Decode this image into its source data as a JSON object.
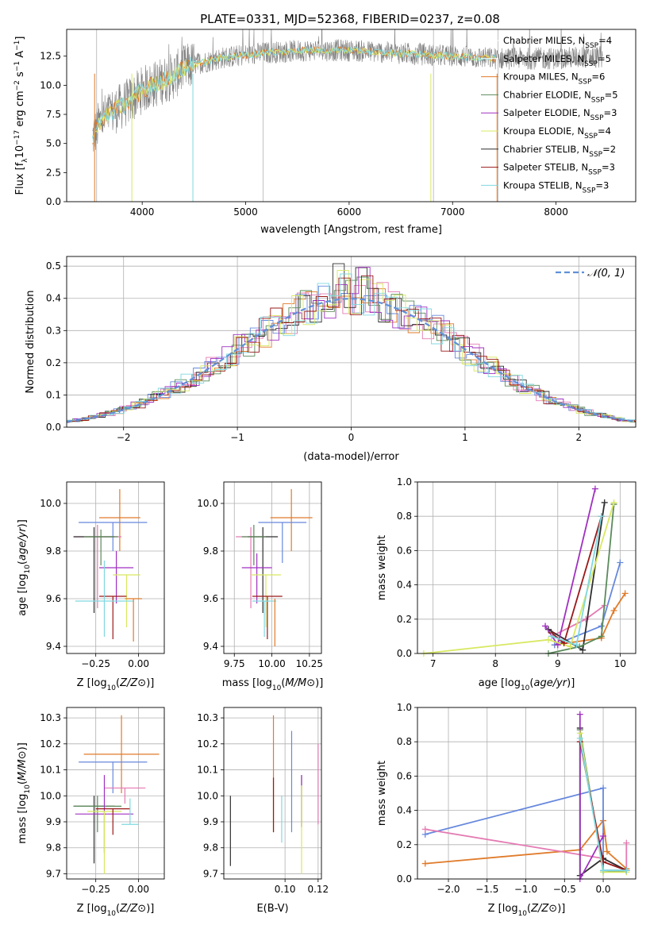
{
  "figure_title": "PLATE=0331, MJD=52368, FIBERID=0237, z=0.08",
  "colors": {
    "data": "#808080",
    "models": [
      "#e07b2a",
      "#6688dd",
      "#e47ab2",
      "#2f2f2f",
      "#5a8a5a",
      "#a030c0",
      "#d8e860",
      "#9a1818",
      "#80d8e0"
    ],
    "normal": "#6090d8"
  },
  "chart_data": [
    {
      "id": "spectrum",
      "type": "line",
      "title": "PLATE=0331, MJD=52368, FIBERID=0237, z=0.08",
      "xlabel": "wavelength [Angstrom, rest frame]",
      "ylabel": "Flux [f_λ 10^-17 erg cm^-2 s^-1 A^-1]",
      "xlim": [
        3270,
        8770
      ],
      "ylim": [
        0,
        14.8
      ],
      "xticks": [
        "4000",
        "5000",
        "6000",
        "7000",
        "8000"
      ],
      "xtick_values": [
        4000,
        5000,
        6000,
        7000,
        8000
      ],
      "yticks": [
        "0.0",
        "2.5",
        "5.0",
        "7.5",
        "10.0",
        "12.5"
      ],
      "ytick_values": [
        0,
        2.5,
        5,
        7.5,
        10,
        12.5
      ],
      "grid": false,
      "legend_position": "right",
      "spectrum_range": [
        3520,
        8450
      ],
      "data_envelope": {
        "x": [
          3520,
          3600,
          3700,
          3800,
          3900,
          4000,
          4100,
          4200,
          4300,
          4400,
          4500,
          4600,
          4700,
          4800,
          4900,
          5000,
          5200,
          5400,
          5600,
          5800,
          6000,
          6200,
          6400,
          6600,
          6800,
          7000,
          7200,
          7400,
          7600,
          7800,
          8000,
          8200,
          8450
        ],
        "y": [
          5.5,
          7.0,
          7.6,
          8.2,
          8.8,
          9.6,
          10.0,
          10.4,
          10.8,
          11.4,
          11.8,
          12.0,
          12.2,
          12.4,
          12.5,
          12.6,
          12.8,
          12.9,
          13.0,
          13.0,
          13.0,
          12.9,
          12.8,
          12.7,
          12.6,
          12.5,
          12.4,
          12.3,
          12.3,
          12.3,
          12.3,
          12.4,
          12.4
        ]
      },
      "legend": [
        {
          "label": "Chabrier MILES, N",
          "sub": "SSP",
          "suffix": "=4"
        },
        {
          "label": "Salpeter MILES, N",
          "sub": "SSP",
          "suffix": "=5"
        },
        {
          "label": "Kroupa MILES, N",
          "sub": "SSP",
          "suffix": "=6"
        },
        {
          "label": "Chabrier ELODIE, N",
          "sub": "SSP",
          "suffix": "=5"
        },
        {
          "label": "Salpeter ELODIE, N",
          "sub": "SSP",
          "suffix": "=3"
        },
        {
          "label": "Kroupa ELODIE, N",
          "sub": "SSP",
          "suffix": "=4"
        },
        {
          "label": "Chabrier STELIB, N",
          "sub": "SSP",
          "suffix": "=2"
        },
        {
          "label": "Salpeter STELIB, N",
          "sub": "SSP",
          "suffix": "=3"
        },
        {
          "label": "Kroupa STELIB, N",
          "sub": "SSP",
          "suffix": "=3"
        }
      ],
      "legend_colors": [
        "#ffffff",
        "#ffffff",
        "#e07b2a",
        "#5a8a5a",
        "#a030c0",
        "#d8e860",
        "#2f2f2f",
        "#9a1818",
        "#80d8e0"
      ]
    },
    {
      "id": "residuals",
      "type": "histogram",
      "xlabel": "(data-model)/error",
      "ylabel": "Normed distribution",
      "xlim": [
        -2.5,
        2.5
      ],
      "ylim": [
        0,
        0.53
      ],
      "xticks": [
        "−2",
        "−1",
        "0",
        "1",
        "2"
      ],
      "xtick_values": [
        -2,
        -1,
        0,
        1,
        2
      ],
      "yticks": [
        "0.0",
        "0.1",
        "0.2",
        "0.3",
        "0.4",
        "0.5"
      ],
      "ytick_values": [
        0,
        0.1,
        0.2,
        0.3,
        0.4,
        0.5
      ],
      "grid": true,
      "legend_position": "top-right",
      "legend": "𝒩(0, 1)",
      "bin_width": 0.1
    },
    {
      "id": "age-vs-Z",
      "type": "errorbar",
      "xlabel": "Z [log10(Z/Z⊙)]",
      "ylabel": "age  [log10(age/yr)]",
      "xlim": [
        -0.42,
        0.15
      ],
      "ylim": [
        9.37,
        10.09
      ],
      "xticks": [
        "−0.25",
        "0.00"
      ],
      "xtick_values": [
        -0.25,
        0
      ],
      "yticks": [
        "9.4",
        "9.6",
        "9.8",
        "10.0"
      ],
      "ytick_values": [
        9.4,
        9.6,
        9.8,
        10.0
      ],
      "grid": true,
      "points": [
        {
          "x": -0.11,
          "y": 9.94,
          "xerr": 0.12,
          "yerr": [
            0.14,
            0.12
          ]
        },
        {
          "x": -0.15,
          "y": 9.92,
          "xerr": 0.2,
          "yerr": [
            0.12,
            0.0
          ]
        },
        {
          "x": -0.24,
          "y": 9.86,
          "xerr": 0.14,
          "yerr": [
            0.3,
            0.05
          ]
        },
        {
          "x": -0.26,
          "y": 9.86,
          "xerr": 0.12,
          "yerr": [
            0.32,
            0.04
          ]
        },
        {
          "x": -0.22,
          "y": 9.86,
          "xerr": 0.1,
          "yerr": [
            0.12,
            0.03
          ]
        },
        {
          "x": -0.13,
          "y": 9.73,
          "xerr": 0.1,
          "yerr": [
            0.15,
            0.07
          ]
        },
        {
          "x": -0.07,
          "y": 9.7,
          "xerr": 0.08,
          "yerr": [
            0.22,
            0.0
          ]
        },
        {
          "x": -0.15,
          "y": 9.61,
          "xerr": 0.08,
          "yerr": [
            0.18,
            0.0
          ]
        },
        {
          "x": -0.2,
          "y": 9.59,
          "xerr": 0.17,
          "yerr": [
            0.15,
            0.17
          ]
        },
        {
          "x": -0.03,
          "y": 9.6,
          "xerr": 0.05,
          "yerr": [
            0.18,
            0.0
          ]
        }
      ]
    },
    {
      "id": "age-vs-mass",
      "type": "errorbar",
      "xlabel": "mass [log10(M/M⊙)]",
      "ylabel": "",
      "xlim": [
        9.68,
        10.33
      ],
      "ylim": [
        9.37,
        10.09
      ],
      "xticks": [
        "9.75",
        "10.00",
        "10.25"
      ],
      "xtick_values": [
        9.75,
        10.0,
        10.25
      ],
      "yticks": [
        "9.4",
        "9.6",
        "9.8",
        "10.0"
      ],
      "ytick_values": [
        9.4,
        9.6,
        9.8,
        10.0
      ],
      "grid": true,
      "points": [
        {
          "x": 10.13,
          "y": 9.94,
          "xerr": 0.14,
          "yerr": [
            0.14,
            0.12
          ]
        },
        {
          "x": 10.07,
          "y": 9.92,
          "xerr": 0.16,
          "yerr": [
            0.17,
            0.0
          ]
        },
        {
          "x": 9.86,
          "y": 9.86,
          "xerr": 0.1,
          "yerr": [
            0.3,
            0.04
          ]
        },
        {
          "x": 9.94,
          "y": 9.86,
          "xerr": 0.1,
          "yerr": [
            0.32,
            0.04
          ]
        },
        {
          "x": 9.88,
          "y": 9.86,
          "xerr": 0.08,
          "yerr": [
            0.12,
            0.05
          ]
        },
        {
          "x": 9.9,
          "y": 9.73,
          "xerr": 0.1,
          "yerr": [
            0.15,
            0.06
          ]
        },
        {
          "x": 9.96,
          "y": 9.7,
          "xerr": 0.1,
          "yerr": [
            0.22,
            0.0
          ]
        },
        {
          "x": 9.97,
          "y": 9.61,
          "xerr": 0.1,
          "yerr": [
            0.18,
            0.0
          ]
        },
        {
          "x": 9.95,
          "y": 9.59,
          "xerr": 0.08,
          "yerr": [
            0.15,
            0.0
          ]
        },
        {
          "x": 10.02,
          "y": 9.6,
          "xerr": 0.0,
          "yerr": [
            0.2,
            0.0
          ]
        }
      ]
    },
    {
      "id": "mass-weight-vs-age",
      "type": "line",
      "xlabel": "age  [log10(age/yr)]",
      "ylabel": "mass weight",
      "xlim": [
        6.75,
        10.25
      ],
      "ylim": [
        0,
        1.0
      ],
      "xticks": [
        "7",
        "8",
        "9",
        "10"
      ],
      "xtick_values": [
        7,
        8,
        9,
        10
      ],
      "yticks": [
        "0.0",
        "0.2",
        "0.4",
        "0.6",
        "0.8",
        "1.0"
      ],
      "ytick_values": [
        0,
        0.2,
        0.4,
        0.6,
        0.8,
        1.0
      ],
      "grid": true,
      "series": [
        {
          "x": [
            8.95,
            9.7,
            9.9,
            10.08
          ],
          "y": [
            0.05,
            0.09,
            0.25,
            0.35
          ]
        },
        {
          "x": [
            8.95,
            9.7,
            10.0
          ],
          "y": [
            0.05,
            0.16,
            0.53
          ]
        },
        {
          "x": [
            8.9,
            9.45,
            9.75
          ],
          "y": [
            0.1,
            0.2,
            0.28
          ]
        },
        {
          "x": [
            8.85,
            9.4,
            9.75
          ],
          "y": [
            0.14,
            0.02,
            0.88
          ]
        },
        {
          "x": [
            8.85,
            9.35,
            9.7,
            9.9
          ],
          "y": [
            0.0,
            0.04,
            0.1,
            0.87
          ]
        },
        {
          "x": [
            8.8,
            9.0,
            9.6
          ],
          "y": [
            0.16,
            0.05,
            0.96
          ]
        },
        {
          "x": [
            6.85,
            8.85,
            9.2,
            9.9
          ],
          "y": [
            0.0,
            0.08,
            0.04,
            0.88
          ]
        },
        {
          "x": [
            8.9,
            9.1,
            9.7
          ],
          "y": [
            0.12,
            0.06,
            0.8
          ]
        },
        {
          "x": [
            8.9,
            9.3,
            9.7
          ],
          "y": [
            0.1,
            0.05,
            0.8
          ]
        }
      ]
    },
    {
      "id": "mass-vs-Z",
      "type": "errorbar",
      "xlabel": "Z [log10(Z/Z⊙)]",
      "ylabel": "mass [log10(M/M⊙)]",
      "xlim": [
        -0.42,
        0.15
      ],
      "ylim": [
        9.68,
        10.34
      ],
      "xticks": [
        "−0.25",
        "0.00"
      ],
      "xtick_values": [
        -0.25,
        0
      ],
      "yticks": [
        "9.7",
        "9.8",
        "9.9",
        "10.0",
        "10.1",
        "10.2",
        "10.3"
      ],
      "ytick_values": [
        9.7,
        9.8,
        9.9,
        10.0,
        10.1,
        10.2,
        10.3
      ],
      "grid": true,
      "points": [
        {
          "x": -0.1,
          "y": 10.16,
          "xerr": 0.22,
          "yerr": [
            0.15,
            0.15
          ]
        },
        {
          "x": -0.15,
          "y": 10.13,
          "xerr": 0.2,
          "yerr": [
            0.12,
            0.0
          ]
        },
        {
          "x": -0.08,
          "y": 10.03,
          "xerr": 0.12,
          "yerr": [
            0.06,
            0.0
          ]
        },
        {
          "x": -0.26,
          "y": 9.96,
          "xerr": 0.12,
          "yerr": [
            0.22,
            0.04
          ]
        },
        {
          "x": -0.24,
          "y": 9.96,
          "xerr": 0.14,
          "yerr": [
            0.1,
            0.04
          ]
        },
        {
          "x": -0.2,
          "y": 9.93,
          "xerr": 0.17,
          "yerr": [
            0.15,
            0.15
          ]
        },
        {
          "x": -0.2,
          "y": 9.94,
          "xerr": 0.1,
          "yerr": [
            0.24,
            0.0
          ]
        },
        {
          "x": -0.15,
          "y": 9.95,
          "xerr": 0.1,
          "yerr": [
            0.1,
            0.0
          ]
        },
        {
          "x": -0.05,
          "y": 9.89,
          "xerr": 0.05,
          "yerr": [
            0.0,
            0.1
          ]
        }
      ]
    },
    {
      "id": "mass-vs-EBV",
      "type": "errorbar",
      "xlabel": "E(B-V)",
      "ylabel": "",
      "xlim": [
        0.063,
        0.122
      ],
      "ylim": [
        9.68,
        10.34
      ],
      "xticks": [
        "0.10",
        "0.12"
      ],
      "xtick_values": [
        0.1,
        0.12
      ],
      "yticks": [
        "9.7",
        "9.8",
        "9.9",
        "10.0",
        "10.1",
        "10.2",
        "10.3"
      ],
      "ytick_values": [
        9.7,
        9.8,
        9.9,
        10.0,
        10.1,
        10.2,
        10.3
      ],
      "grid": true,
      "points": [
        {
          "x": 0.093,
          "y": 10.16,
          "xerr": 0,
          "yerr": [
            0.3,
            0.15
          ]
        },
        {
          "x": 0.104,
          "y": 10.13,
          "xerr": 0,
          "yerr": [
            0.27,
            0.12
          ]
        },
        {
          "x": 0.12,
          "y": 10.03,
          "xerr": 0,
          "yerr": [
            0.14,
            0.17
          ]
        },
        {
          "x": 0.067,
          "y": 9.86,
          "xerr": 0,
          "yerr": [
            0.13,
            0.14
          ]
        },
        {
          "x": 0.11,
          "y": 9.98,
          "xerr": 0,
          "yerr": [
            0.1,
            0.1
          ]
        },
        {
          "x": 0.11,
          "y": 9.98,
          "xerr": 0,
          "yerr": [
            0.1,
            0.1
          ]
        },
        {
          "x": 0.11,
          "y": 9.9,
          "xerr": 0,
          "yerr": [
            0.2,
            0.14
          ]
        },
        {
          "x": 0.093,
          "y": 9.96,
          "xerr": 0,
          "yerr": [
            0.1,
            0.11
          ]
        },
        {
          "x": 0.098,
          "y": 9.9,
          "xerr": 0,
          "yerr": [
            0.08,
            0.1
          ]
        }
      ]
    },
    {
      "id": "mass-weight-vs-Z",
      "type": "line",
      "xlabel": "Z [log10(Z/Z⊙)]",
      "ylabel": "mass weight",
      "xlim": [
        -2.4,
        0.42
      ],
      "ylim": [
        0,
        1.0
      ],
      "xticks": [
        "−2.0",
        "−1.5",
        "−1.0",
        "−0.5",
        "0.0"
      ],
      "xtick_values": [
        -2.0,
        -1.5,
        -1.0,
        -0.5,
        0.0
      ],
      "yticks": [
        "0.0",
        "0.2",
        "0.4",
        "0.6",
        "0.8",
        "1.0"
      ],
      "ytick_values": [
        0,
        0.2,
        0.4,
        0.6,
        0.8,
        1.0
      ],
      "grid": true,
      "series": [
        {
          "x": [
            -2.3,
            -0.3,
            0.0,
            0.05,
            0.3
          ],
          "y": [
            0.09,
            0.17,
            0.34,
            0.16,
            0.06
          ]
        },
        {
          "x": [
            -2.3,
            0.0,
            0.0,
            0.3
          ],
          "y": [
            0.26,
            0.53,
            0.05,
            0.05
          ]
        },
        {
          "x": [
            -2.3,
            0.0,
            0.3,
            0.3
          ],
          "y": [
            0.29,
            0.12,
            0.05,
            0.21
          ]
        },
        {
          "x": [
            -0.3,
            -0.3,
            0.0,
            0.3
          ],
          "y": [
            0.88,
            0.02,
            0.12,
            0.05
          ]
        },
        {
          "x": [
            -0.3,
            0.0,
            0.3
          ],
          "y": [
            0.87,
            0.04,
            0.05
          ]
        },
        {
          "x": [
            -0.3,
            -0.3,
            0.0
          ],
          "y": [
            0.96,
            0.0,
            0.25
          ]
        },
        {
          "x": [
            -0.3,
            0.0,
            0.3
          ],
          "y": [
            0.85,
            0.04,
            0.04
          ]
        },
        {
          "x": [
            -0.3,
            0.0,
            0.3
          ],
          "y": [
            0.8,
            0.1,
            0.05
          ]
        },
        {
          "x": [
            -0.3,
            0.0,
            0.3
          ],
          "y": [
            0.82,
            0.05,
            0.05
          ]
        }
      ]
    }
  ]
}
